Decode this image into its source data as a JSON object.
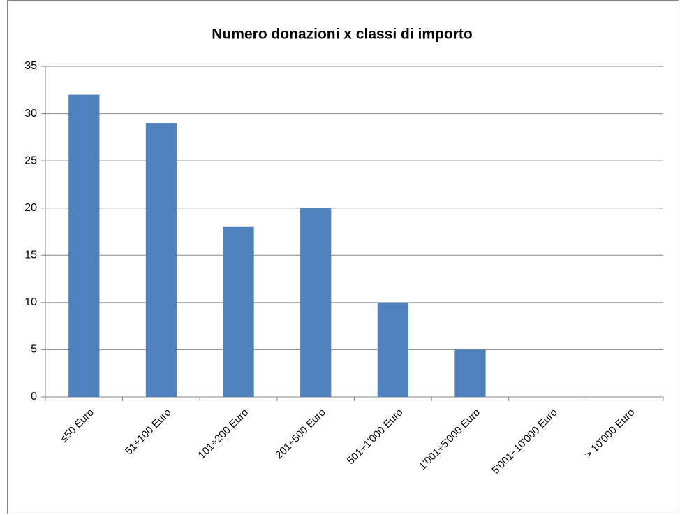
{
  "chart_data": {
    "type": "bar",
    "title": "Numero donazioni  x classi di importo",
    "categories": [
      "≤50 Euro",
      "51÷100 Euro",
      "101÷200 Euro",
      "201÷500 Euro",
      "501÷1'000 Euro",
      "1'001÷5'000 Euro",
      "5'001÷10'000 Euro",
      "> 10'000 Euro"
    ],
    "values": [
      32,
      29,
      18,
      20,
      10,
      5,
      0,
      0
    ],
    "color": "#4f81bd",
    "ylim": [
      0,
      35
    ],
    "yticks": [
      0,
      5,
      10,
      15,
      20,
      25,
      30,
      35
    ],
    "grid": true
  }
}
